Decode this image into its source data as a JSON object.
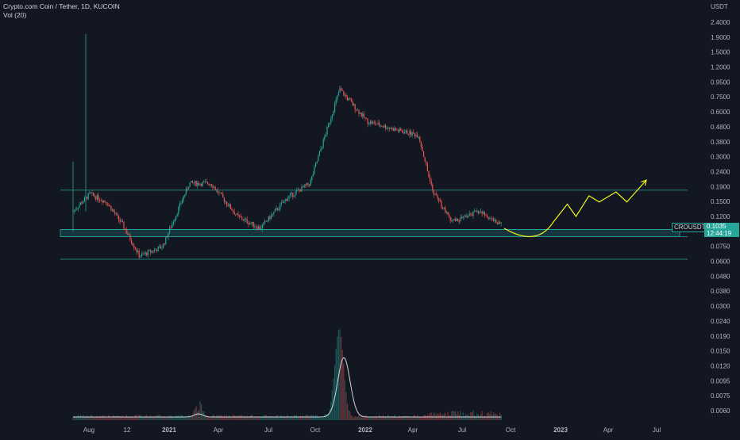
{
  "header": {
    "title": "Crypto.com Coin / Tether, 1D, KUCOIN",
    "volume_label": "Vol (20)"
  },
  "price_axis": {
    "currency": "USDT",
    "labels": [
      "2.4000",
      "1.9000",
      "1.5000",
      "1.2000",
      "0.9500",
      "0.7500",
      "0.6000",
      "0.4800",
      "0.3800",
      "0.3000",
      "0.2400",
      "0.1900",
      "0.1500",
      "0.1200",
      "0.0950",
      "0.0750",
      "0.0600",
      "0.0480",
      "0.0380",
      "0.0300",
      "0.0240",
      "0.0190",
      "0.0150",
      "0.0120",
      "0.0095",
      "0.0075",
      "0.0060"
    ]
  },
  "time_axis": {
    "labels": [
      "Aug",
      "12",
      "2021",
      "Apr",
      "Jul",
      "Oct",
      "2022",
      "Apr",
      "Jul",
      "Oct",
      "2023",
      "Apr",
      "Jul"
    ]
  },
  "last_price": {
    "symbol": "CROUSDT",
    "value": "0.1035",
    "countdown": "12:44:19"
  },
  "colors": {
    "up": "#26a69a",
    "down": "#ef5350",
    "projection": "#f5f31b",
    "levels": "#26a69a",
    "background": "#131722"
  },
  "chart_data": {
    "type": "candlestick",
    "title": "Crypto.com Coin / Tether, 1D, KUCOIN",
    "y_scale": "log",
    "ylabel": "USDT",
    "approx_close_path": [
      {
        "x": "2020-07-20",
        "close": 0.13
      },
      {
        "x": "2020-08-20",
        "close": 0.17
      },
      {
        "x": "2020-09-20",
        "close": 0.15
      },
      {
        "x": "2020-10-20",
        "close": 0.105
      },
      {
        "x": "2020-11-20",
        "close": 0.065
      },
      {
        "x": "2021-01-01",
        "close": 0.075
      },
      {
        "x": "2021-02-20",
        "close": 0.2
      },
      {
        "x": "2021-04-01",
        "close": 0.2
      },
      {
        "x": "2021-05-20",
        "close": 0.12
      },
      {
        "x": "2021-07-01",
        "close": 0.1
      },
      {
        "x": "2021-08-20",
        "close": 0.16
      },
      {
        "x": "2021-10-01",
        "close": 0.2
      },
      {
        "x": "2021-11-25",
        "close": 0.85
      },
      {
        "x": "2022-01-15",
        "close": 0.52
      },
      {
        "x": "2022-03-15",
        "close": 0.45
      },
      {
        "x": "2022-04-20",
        "close": 0.42
      },
      {
        "x": "2022-05-15",
        "close": 0.18
      },
      {
        "x": "2022-06-20",
        "close": 0.11
      },
      {
        "x": "2022-08-10",
        "close": 0.13
      },
      {
        "x": "2022-09-21",
        "close": 0.1035
      }
    ],
    "horizontal_levels": [
      0.18,
      0.098,
      0.088,
      0.062
    ],
    "support_zone": [
      0.088,
      0.098
    ],
    "projection_path": [
      {
        "x": "2022-09-25",
        "value": 0.1
      },
      {
        "x": "2022-10-25",
        "value": 0.087
      },
      {
        "x": "2022-11-25",
        "value": 0.088
      },
      {
        "x": "2022-12-25",
        "value": 0.11
      },
      {
        "x": "2023-01-20",
        "value": 0.145
      },
      {
        "x": "2023-02-05",
        "value": 0.12
      },
      {
        "x": "2023-03-01",
        "value": 0.165
      },
      {
        "x": "2023-03-20",
        "value": 0.15
      },
      {
        "x": "2023-04-20",
        "value": 0.175
      },
      {
        "x": "2023-05-10",
        "value": 0.15
      },
      {
        "x": "2023-06-15",
        "value": 0.21
      }
    ],
    "volume_peak_date": "2021-11-24"
  }
}
